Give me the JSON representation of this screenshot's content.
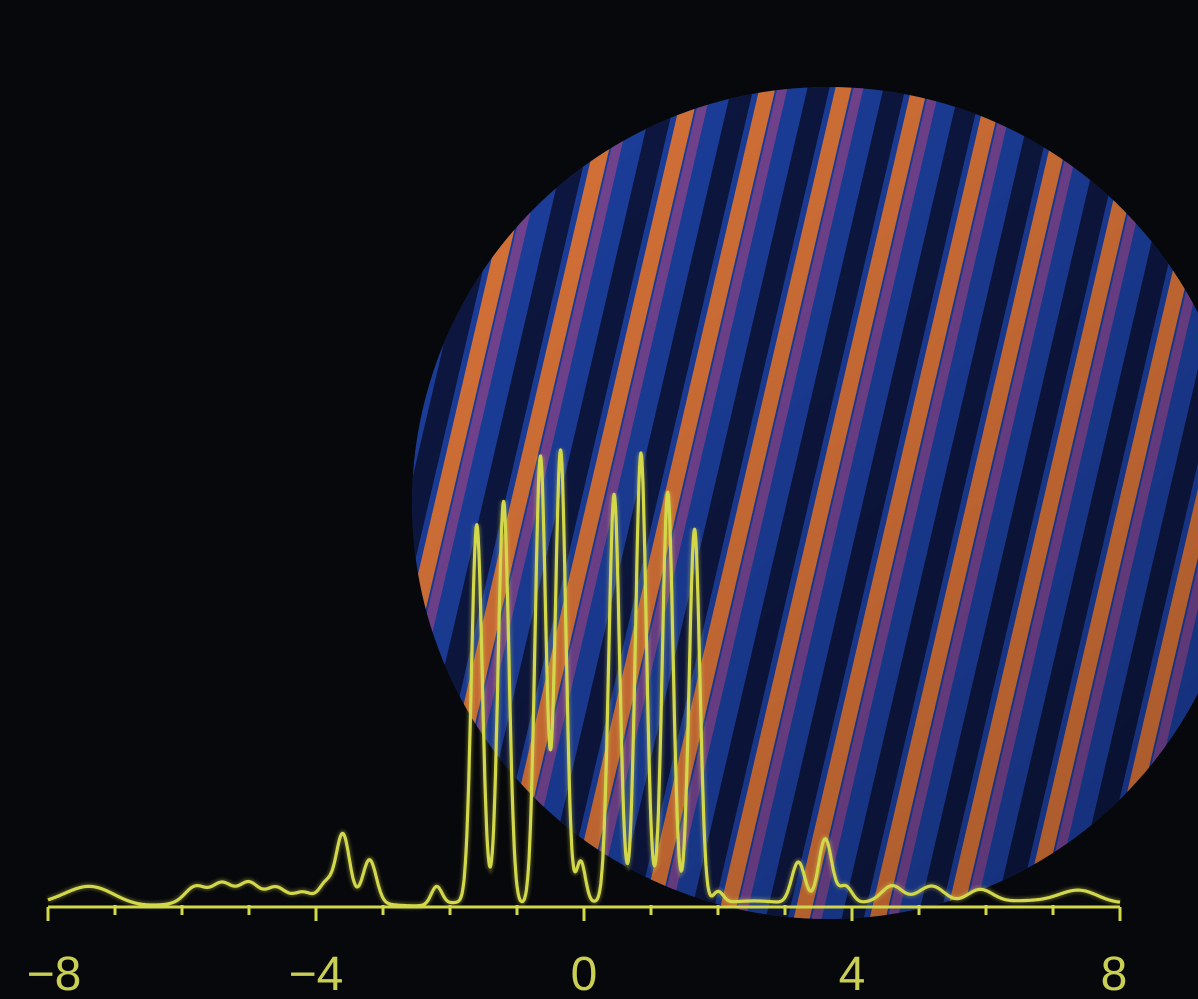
{
  "colors": {
    "background": "#07080b",
    "trace": "#d2d84a",
    "fringe_blue": "#2f5fd6",
    "fringe_orange": "#f07a2e",
    "fringe_dark": "#0b1030"
  },
  "chart_data": {
    "type": "line",
    "title": "",
    "xlabel": "",
    "ylabel": "",
    "xlim": [
      -8,
      8
    ],
    "ylim": [
      0,
      1
    ],
    "grid": false,
    "x_ticks": [
      -8,
      -4,
      0,
      4,
      8
    ],
    "x_tick_labels": [
      "−8",
      "−4",
      "0",
      "4",
      "8"
    ],
    "background_image": "interference-fringe-disk",
    "series": [
      {
        "peaks": [
          {
            "x": -7.35,
            "height": 0.025,
            "width": 0.35
          },
          {
            "x": -5.8,
            "height": 0.025,
            "width": 0.15
          },
          {
            "x": -5.4,
            "height": 0.03,
            "width": 0.15
          },
          {
            "x": -5.0,
            "height": 0.035,
            "width": 0.15
          },
          {
            "x": -4.6,
            "height": 0.03,
            "width": 0.15
          },
          {
            "x": -4.2,
            "height": 0.02,
            "width": 0.15
          },
          {
            "x": -3.85,
            "height": 0.03,
            "width": 0.1
          },
          {
            "x": -3.6,
            "height": 0.11,
            "width": 0.1
          },
          {
            "x": -3.2,
            "height": 0.07,
            "width": 0.1
          },
          {
            "x": -2.2,
            "height": 0.03,
            "width": 0.08
          },
          {
            "x": -1.6,
            "height": 0.62,
            "width": 0.08
          },
          {
            "x": -1.2,
            "height": 0.66,
            "width": 0.08
          },
          {
            "x": -0.65,
            "height": 0.74,
            "width": 0.08
          },
          {
            "x": -0.35,
            "height": 0.75,
            "width": 0.08
          },
          {
            "x": -0.05,
            "height": 0.07,
            "width": 0.07
          },
          {
            "x": 0.45,
            "height": 0.67,
            "width": 0.08
          },
          {
            "x": 0.85,
            "height": 0.74,
            "width": 0.08
          },
          {
            "x": 1.25,
            "height": 0.68,
            "width": 0.08
          },
          {
            "x": 1.65,
            "height": 0.62,
            "width": 0.08
          },
          {
            "x": 2.0,
            "height": 0.02,
            "width": 0.08
          },
          {
            "x": 3.2,
            "height": 0.07,
            "width": 0.1
          },
          {
            "x": 3.6,
            "height": 0.11,
            "width": 0.1
          },
          {
            "x": 3.9,
            "height": 0.03,
            "width": 0.1
          },
          {
            "x": 4.6,
            "height": 0.025,
            "width": 0.15
          },
          {
            "x": 5.2,
            "height": 0.03,
            "width": 0.2
          },
          {
            "x": 5.9,
            "height": 0.025,
            "width": 0.2
          },
          {
            "x": 7.4,
            "height": 0.025,
            "width": 0.3
          }
        ]
      }
    ]
  }
}
